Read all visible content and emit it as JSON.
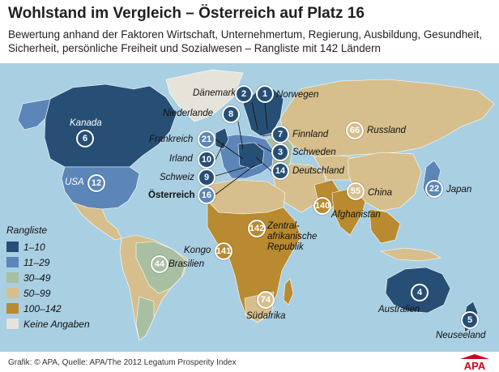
{
  "header": {
    "title": "Wohlstand im Vergleich – Österreich auf Platz 16",
    "subtitle_line1": "Bewertung anhand der Faktoren Wirtschaft, Unternehmertum, Regierung, Ausbildung, Gesundheit,",
    "subtitle_line2": "Sicherheit, persönliche Freiheit und Sozialwesen – Rangliste mit 142 Ländern"
  },
  "legend": {
    "title": "Rangliste",
    "items": [
      {
        "label": "1–10",
        "color": "#274f76"
      },
      {
        "label": "11–29",
        "color": "#5c86b8"
      },
      {
        "label": "30–49",
        "color": "#a9bfa2"
      },
      {
        "label": "50–99",
        "color": "#d6bf8c"
      },
      {
        "label": "100–142",
        "color": "#b98a2f"
      },
      {
        "label": "Keine Angaben",
        "color": "#e6e4da"
      }
    ]
  },
  "countries": {
    "kanada": {
      "name": "Kanada",
      "rank": "6"
    },
    "usa": {
      "name": "USA",
      "rank": "12"
    },
    "brasilien": {
      "name": "Brasilien",
      "rank": "44"
    },
    "daenemark": {
      "name": "Dänemark",
      "rank": "2"
    },
    "norwegen": {
      "name": "Norwegen",
      "rank": "1"
    },
    "niederlande": {
      "name": "Niederlande",
      "rank": "8"
    },
    "frankreich": {
      "name": "Frankreich",
      "rank": "21"
    },
    "irland": {
      "name": "Irland",
      "rank": "10"
    },
    "schweiz": {
      "name": "Schweiz",
      "rank": "9"
    },
    "oesterreich": {
      "name": "Österreich",
      "rank": "16"
    },
    "finnland": {
      "name": "Finnland",
      "rank": "7"
    },
    "schweden": {
      "name": "Schweden",
      "rank": "3"
    },
    "deutschland": {
      "name": "Deutschland",
      "rank": "14"
    },
    "russland": {
      "name": "Russland",
      "rank": "66"
    },
    "china": {
      "name": "China",
      "rank": "55"
    },
    "japan": {
      "name": "Japan",
      "rank": "22"
    },
    "afghanistan": {
      "name": "Afghanistan",
      "rank": "140"
    },
    "zentralafrika": {
      "name1": "Zentral-",
      "name2": "afrikanische",
      "name3": "Republik",
      "rank": "142"
    },
    "kongo": {
      "name": "Kongo",
      "rank": "141"
    },
    "suedafrika": {
      "name": "Südafrika",
      "rank": "74"
    },
    "australien": {
      "name": "Australien",
      "rank": "4"
    },
    "neuseeland": {
      "name": "Neuseeland",
      "rank": "5"
    }
  },
  "footer": {
    "credit": "Grafik: © APA, Quelle: APA/The 2012 Legatum Prosperity Index",
    "logo_text": "APA"
  }
}
